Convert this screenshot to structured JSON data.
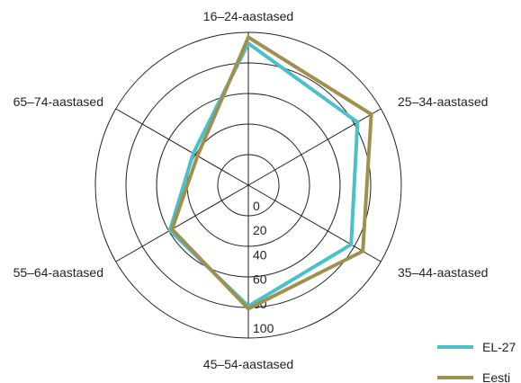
{
  "chart_data": {
    "type": "radar",
    "categories": [
      "16–24-aastased",
      "25–34-aastased",
      "35–44-aastased",
      "45–54-aastased",
      "55–64-aastased",
      "65–74-aastased"
    ],
    "rlim": [
      0,
      100
    ],
    "ticks": [
      "0",
      "20",
      "40",
      "60",
      "80",
      "100"
    ],
    "series": [
      {
        "name": "EL-27",
        "values": [
          91,
          78,
          72,
          74,
          49,
          27
        ],
        "color": "#4bc0c8"
      },
      {
        "name": "Eesti",
        "values": [
          96,
          91,
          83,
          76,
          47,
          23
        ],
        "color": "#a09050"
      }
    ],
    "legend_position": "bottom-right",
    "grid": true
  }
}
